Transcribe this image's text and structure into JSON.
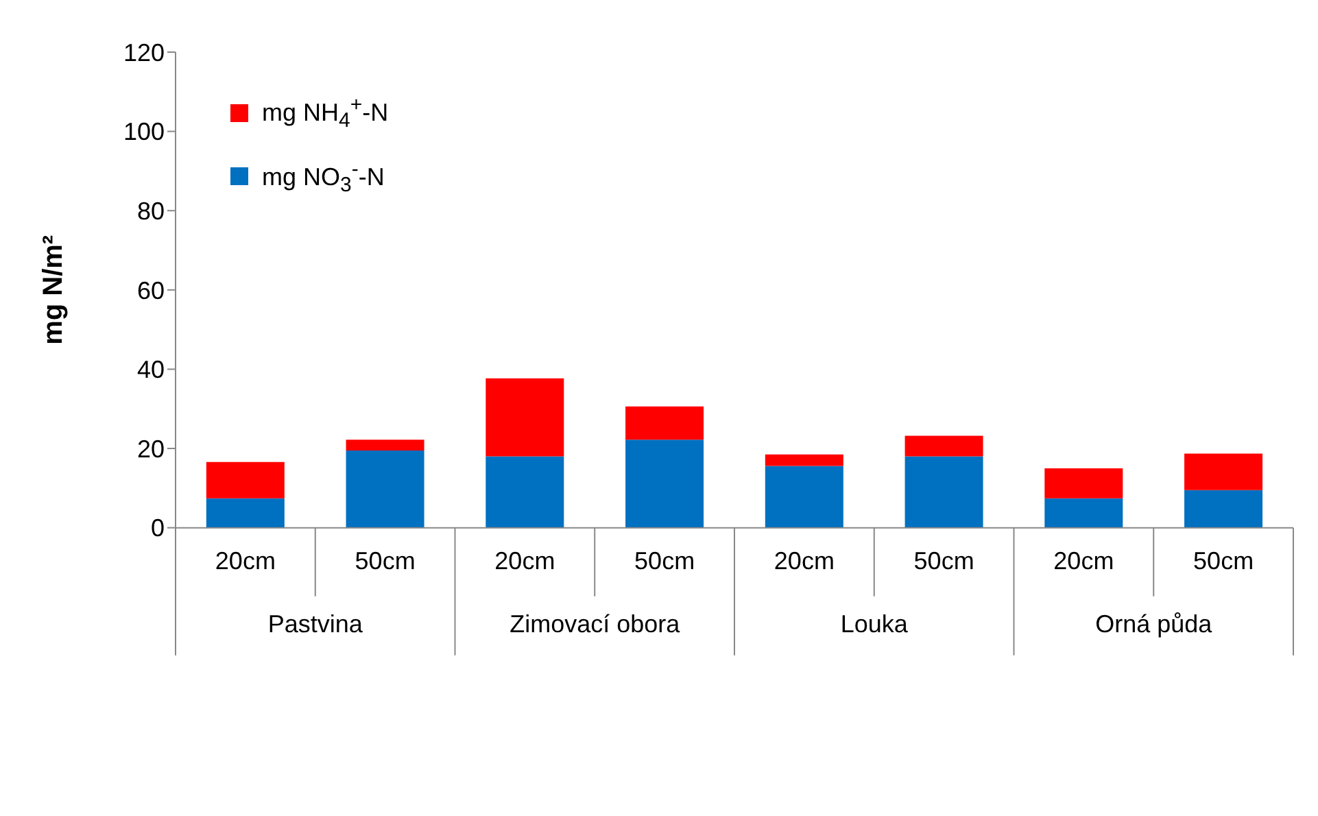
{
  "chart_data": {
    "type": "bar",
    "stacked": true,
    "ylabel": "mg N/m²",
    "categories": [
      "20cm",
      "50cm",
      "20cm",
      "50cm",
      "20cm",
      "50cm",
      "20cm",
      "50cm"
    ],
    "annotations": [
      "Pastvina",
      "Zimovací obora",
      "Louka",
      "Orná půda"
    ],
    "series": [
      {
        "name": "mg NO$_{3}$$^{-}$-N",
        "color": "#0070c0",
        "values": [
          7.4,
          19.5,
          18,
          22.2,
          15.6,
          18,
          7.4,
          9.5
        ]
      },
      {
        "name": "mg NH$_{4}$$^{+}$-N",
        "color": "#ff0000",
        "values": [
          9.2,
          2.7,
          19.7,
          8.4,
          2.9,
          5.2,
          7.6,
          9.2
        ]
      }
    ],
    "ylim": [
      0,
      120
    ],
    "yticks": [
      0,
      20,
      40,
      60,
      80,
      100,
      120
    ],
    "legend": "top left"
  }
}
